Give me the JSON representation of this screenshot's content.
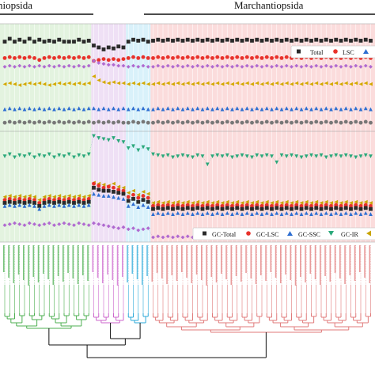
{
  "header": {
    "left_clade": "niopsida",
    "right_clade": "Marchantiopsida"
  },
  "legend_top": {
    "items": [
      {
        "label": "Total",
        "marker": "square",
        "color": "#2b2b2b"
      },
      {
        "label": "LSC",
        "marker": "circle",
        "color": "#e8322b"
      },
      {
        "label": "",
        "marker": "triangle-up",
        "color": "#2f6fd1"
      }
    ]
  },
  "legend_bottom": {
    "items": [
      {
        "label": "GC-Total",
        "marker": "square",
        "color": "#2b2b2b"
      },
      {
        "label": "GC-LSC",
        "marker": "circle",
        "color": "#e8322b"
      },
      {
        "label": "GC-SSC",
        "marker": "triangle-up",
        "color": "#2f6fd1"
      },
      {
        "label": "GC-IR",
        "marker": "triangle-down",
        "color": "#2aa87a"
      },
      {
        "label": "",
        "marker": "triangle-left",
        "color": "#c9a400"
      }
    ]
  },
  "clade_colors": {
    "green": "#4caf50",
    "purple": "#cc66cc",
    "blue": "#2aa8d8",
    "red": "#e07a7a"
  },
  "background_colors": {
    "green": "#e3f3df",
    "purple": "#efe0f5",
    "blue": "#d9f1fa",
    "red": "#fbdcdc"
  },
  "chart_data": {
    "type": "scatter",
    "n_taxa": 75,
    "groups": [
      {
        "clade": "green",
        "count": 18
      },
      {
        "clade": "purple",
        "count": 7
      },
      {
        "clade": "blue",
        "count": 5
      },
      {
        "clade": "red",
        "count": 45
      }
    ],
    "panel_top": {
      "ylim": [
        0,
        100
      ],
      "series": [
        {
          "name": "Total",
          "marker": "square",
          "color": "#2b2b2b",
          "base": 88,
          "var": [
            0,
            3,
            0,
            2,
            0,
            3,
            0,
            2,
            0,
            1,
            0,
            2,
            0,
            0,
            0,
            2,
            0,
            1,
            -4,
            -6,
            -8,
            -6,
            -7,
            -5,
            -6,
            0,
            2,
            1,
            2,
            0,
            1,
            2,
            1,
            2,
            1,
            2,
            1,
            2,
            1,
            2,
            1,
            2,
            1,
            2,
            1,
            2,
            1,
            2,
            1,
            2,
            1,
            2,
            1,
            2,
            1,
            2,
            1,
            2,
            1,
            2,
            1,
            2,
            1,
            2,
            1,
            2,
            1,
            2,
            1,
            2,
            1,
            2,
            1,
            2,
            1
          ]
        },
        {
          "name": "LSC",
          "marker": "circle",
          "color": "#e8322b",
          "base": 71,
          "var": [
            0,
            1,
            0,
            1,
            0,
            1,
            0,
            -2,
            0,
            1,
            0,
            1,
            0,
            1,
            0,
            1,
            0,
            1,
            -3,
            -2,
            -1,
            -2,
            -1,
            -2,
            -1,
            0,
            1,
            0,
            1,
            0,
            0,
            1,
            0,
            1,
            0,
            1,
            0,
            1,
            0,
            1,
            0,
            1,
            0,
            1,
            0,
            1,
            0,
            1,
            0,
            1,
            0,
            1,
            0,
            1,
            0,
            1,
            0,
            1,
            0,
            1,
            0,
            1,
            0,
            1,
            0,
            1,
            0,
            1,
            0,
            1,
            0,
            1,
            0,
            1,
            0
          ]
        },
        {
          "name": "",
          "marker": "diamond",
          "color": "#b06ad0",
          "base": 62,
          "var": [
            0,
            1,
            0,
            1,
            0,
            1,
            0,
            1,
            0,
            1,
            0,
            1,
            0,
            1,
            0,
            1,
            0,
            1,
            6,
            4,
            3,
            2,
            2,
            1,
            1,
            0,
            1,
            0,
            1,
            0,
            0,
            1,
            0,
            1,
            0,
            1,
            0,
            1,
            0,
            1,
            0,
            1,
            0,
            1,
            0,
            1,
            0,
            1,
            0,
            1,
            0,
            1,
            0,
            1,
            0,
            1,
            0,
            1,
            0,
            1,
            0,
            1,
            0,
            1,
            0,
            1,
            0,
            1,
            0,
            1,
            0,
            1,
            0,
            1,
            0
          ]
        },
        {
          "name": "",
          "marker": "triangle-left",
          "color": "#d4a900",
          "base": 44,
          "var": [
            0,
            1,
            0,
            -1,
            0,
            1,
            0,
            1,
            0,
            -1,
            0,
            1,
            0,
            1,
            0,
            1,
            0,
            1,
            8,
            4,
            2,
            1,
            2,
            1,
            1,
            0,
            1,
            0,
            1,
            0,
            0,
            1,
            0,
            1,
            0,
            1,
            0,
            1,
            0,
            1,
            0,
            1,
            0,
            1,
            0,
            1,
            0,
            1,
            0,
            1,
            0,
            1,
            0,
            1,
            0,
            1,
            0,
            1,
            0,
            1,
            0,
            1,
            0,
            1,
            0,
            1,
            0,
            1,
            0,
            1,
            0,
            1,
            0,
            1,
            0
          ]
        },
        {
          "name": "",
          "marker": "triangle-up",
          "color": "#2f6fd1",
          "base": 18,
          "var": [
            0,
            1,
            0,
            1,
            0,
            1,
            0,
            1,
            0,
            1,
            0,
            1,
            0,
            1,
            0,
            1,
            0,
            1,
            1,
            0,
            1,
            0,
            1,
            0,
            1,
            0,
            1,
            0,
            1,
            0,
            0,
            1,
            0,
            1,
            0,
            1,
            0,
            1,
            0,
            1,
            0,
            1,
            0,
            1,
            0,
            1,
            0,
            1,
            0,
            1,
            0,
            1,
            0,
            1,
            0,
            1,
            0,
            1,
            0,
            1,
            0,
            1,
            0,
            1,
            0,
            1,
            0,
            1,
            0,
            1,
            0,
            1,
            0,
            1,
            0
          ]
        },
        {
          "name": "",
          "marker": "circle",
          "color": "#777777",
          "base": 4,
          "var": [
            0,
            1,
            0,
            1,
            0,
            1,
            0,
            1,
            0,
            1,
            0,
            1,
            0,
            1,
            0,
            1,
            0,
            1,
            0,
            1,
            0,
            1,
            0,
            1,
            0,
            0,
            1,
            0,
            1,
            0,
            0,
            1,
            0,
            1,
            0,
            1,
            0,
            1,
            0,
            1,
            0,
            1,
            0,
            1,
            0,
            1,
            0,
            1,
            0,
            1,
            0,
            1,
            0,
            1,
            0,
            1,
            0,
            1,
            0,
            1,
            0,
            1,
            0,
            1,
            0,
            1,
            0,
            1,
            0,
            1,
            0,
            1,
            0,
            1,
            0
          ]
        }
      ]
    },
    "panel_bottom": {
      "ylim": [
        0,
        100
      ],
      "series": [
        {
          "name": "GC-IR",
          "marker": "triangle-down",
          "color": "#2aa87a",
          "base": 80,
          "var": [
            0,
            2,
            -1,
            1,
            0,
            2,
            -1,
            1,
            0,
            2,
            -1,
            1,
            0,
            2,
            -1,
            1,
            0,
            2,
            20,
            18,
            17,
            16,
            18,
            15,
            14,
            8,
            10,
            6,
            9,
            7,
            2,
            1,
            0,
            1,
            -1,
            0,
            1,
            0,
            -1,
            1,
            0,
            -8,
            0,
            1,
            0,
            1,
            -1,
            0,
            1,
            0,
            -1,
            1,
            0,
            1,
            0,
            -6,
            1,
            0,
            1,
            0,
            -1,
            0,
            1,
            0,
            1,
            -1,
            0,
            1,
            0,
            1,
            0,
            -1,
            0,
            1,
            0
          ]
        },
        {
          "name": "",
          "marker": "triangle-left",
          "color": "#c9a400",
          "base": 40,
          "var": [
            0,
            1,
            0,
            1,
            0,
            1,
            0,
            -3,
            0,
            1,
            0,
            1,
            0,
            1,
            0,
            1,
            0,
            1,
            14,
            13,
            12,
            11,
            13,
            10,
            9,
            4,
            6,
            2,
            5,
            3,
            -6,
            -5,
            -6,
            -5,
            -6,
            -5,
            -6,
            -5,
            -6,
            -5,
            -6,
            -5,
            -6,
            -5,
            -6,
            -5,
            -6,
            -5,
            -6,
            -5,
            -6,
            -5,
            -6,
            -5,
            -6,
            -5,
            -6,
            -5,
            -6,
            -5,
            -6,
            -5,
            -6,
            -5,
            -6,
            -5,
            -6,
            -5,
            -6,
            -5,
            -6,
            -5,
            -6,
            -5,
            -6
          ]
        },
        {
          "name": "GC-LSC",
          "marker": "circle",
          "color": "#e8322b",
          "base": 37,
          "var": [
            0,
            1,
            0,
            1,
            0,
            1,
            0,
            -3,
            0,
            1,
            0,
            1,
            0,
            1,
            0,
            1,
            0,
            1,
            16,
            14,
            12,
            13,
            12,
            10,
            9,
            3,
            5,
            2,
            4,
            2,
            -6,
            -5,
            -6,
            -5,
            -6,
            -5,
            -6,
            -5,
            -6,
            -5,
            -6,
            -5,
            -6,
            -5,
            -6,
            -5,
            -6,
            -5,
            -6,
            -5,
            -6,
            -5,
            -6,
            -5,
            -6,
            -5,
            -6,
            -5,
            -6,
            -5,
            -6,
            -5,
            -6,
            -5,
            -6,
            -5,
            -6,
            -5,
            -6,
            -5,
            -6,
            -5,
            -6,
            -5,
            -6
          ]
        },
        {
          "name": "GC-Total",
          "marker": "square",
          "color": "#2b2b2b",
          "base": 34,
          "var": [
            0,
            1,
            0,
            1,
            0,
            1,
            0,
            -3,
            0,
            1,
            0,
            1,
            0,
            1,
            0,
            1,
            0,
            1,
            15,
            13,
            12,
            12,
            11,
            10,
            9,
            2,
            4,
            1,
            3,
            1,
            -6,
            -5,
            -6,
            -5,
            -6,
            -5,
            -6,
            -5,
            -6,
            -5,
            -6,
            -5,
            -6,
            -5,
            -6,
            -5,
            -6,
            -5,
            -6,
            -5,
            -6,
            -5,
            -6,
            -5,
            -6,
            -5,
            -6,
            -5,
            -6,
            -5,
            -6,
            -5,
            -6,
            -5,
            -6,
            -5,
            -6,
            -5,
            -6,
            -5,
            -6,
            -5,
            -6,
            -5,
            -6
          ]
        },
        {
          "name": "GC-SSC",
          "marker": "triangle-up",
          "color": "#2f6fd1",
          "base": 31,
          "var": [
            0,
            1,
            0,
            1,
            0,
            1,
            0,
            -3,
            0,
            1,
            0,
            1,
            0,
            1,
            0,
            1,
            0,
            1,
            12,
            11,
            10,
            10,
            9,
            8,
            7,
            0,
            2,
            -1,
            1,
            -1,
            -8,
            -7,
            -8,
            -7,
            -8,
            -7,
            -8,
            -7,
            -8,
            -7,
            -8,
            -7,
            -8,
            -7,
            -8,
            -7,
            -8,
            -7,
            -8,
            -7,
            -8,
            -7,
            -8,
            -7,
            -8,
            -7,
            -8,
            -7,
            -8,
            -7,
            -8,
            -7,
            -8,
            -7,
            -8,
            -7,
            -8,
            -7,
            -8,
            -7,
            -8,
            -7,
            -8,
            -7,
            -8
          ]
        },
        {
          "name": "",
          "marker": "diamond",
          "color": "#b06ad0",
          "base": 12,
          "var": [
            0,
            1,
            2,
            1,
            0,
            2,
            1,
            0,
            1,
            2,
            0,
            1,
            2,
            1,
            0,
            2,
            1,
            0,
            2,
            1,
            0,
            -1,
            -2,
            -3,
            -2,
            -4,
            -3,
            -5,
            -4,
            -3,
            -12,
            -11,
            -12,
            -11,
            -12,
            -11,
            -12,
            -11,
            -12,
            -11,
            -12,
            -11,
            -12,
            -11,
            -12,
            -11,
            -12,
            -11,
            -12,
            -11,
            -12,
            -11,
            -12,
            -11,
            -12,
            -11,
            -12,
            -11,
            -12,
            -11,
            -12,
            -11,
            -12,
            -11,
            -12,
            -11,
            -12,
            -11,
            -12,
            -11,
            -12,
            -11,
            -12,
            -11,
            -12
          ]
        }
      ]
    }
  }
}
